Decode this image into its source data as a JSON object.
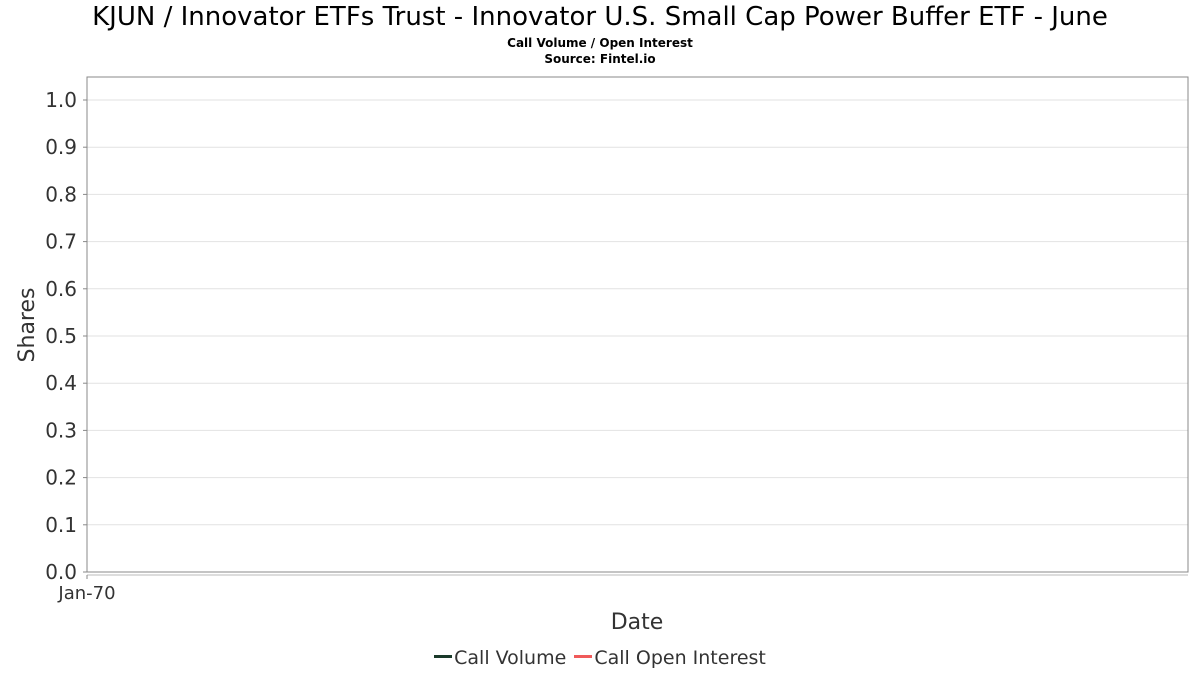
{
  "chart_data": {
    "type": "line",
    "title": "KJUN / Innovator ETFs Trust - Innovator U.S. Small Cap Power Buffer ETF - June",
    "subtitle": "Call Volume / Open Interest",
    "source": "Source: Fintel.io",
    "xlabel": "Date",
    "ylabel": "Shares",
    "x_ticks": [
      "Jan-70"
    ],
    "y_ticks": [
      "0.0",
      "0.1",
      "0.2",
      "0.3",
      "0.4",
      "0.5",
      "0.6",
      "0.7",
      "0.8",
      "0.9",
      "1.0"
    ],
    "ylim": [
      0,
      1.05
    ],
    "grid": true,
    "legend_position": "bottom-center",
    "series": [
      {
        "name": "Call Volume",
        "color": "#1a3a2a",
        "x": [],
        "y": []
      },
      {
        "name": "Call Open Interest",
        "color": "#f05a5a",
        "x": [],
        "y": []
      }
    ]
  }
}
